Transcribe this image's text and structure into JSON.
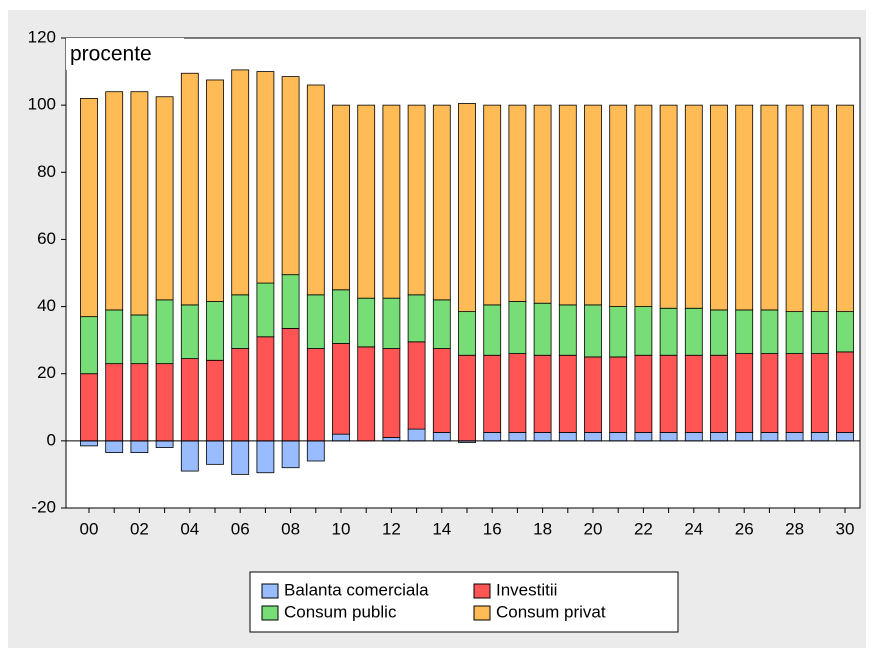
{
  "chart_data": {
    "type": "bar",
    "stacked": true,
    "annotation": "procente",
    "categories": [
      "00",
      null,
      "02",
      null,
      "04",
      null,
      "06",
      null,
      "08",
      null,
      "10",
      null,
      "12",
      null,
      "14",
      null,
      "16",
      null,
      "18",
      null,
      "20",
      null,
      "22",
      null,
      "24",
      null,
      "26",
      null,
      "28",
      null,
      "30"
    ],
    "ylim": [
      -20,
      120
    ],
    "yticks": [
      -20,
      0,
      20,
      40,
      60,
      80,
      100,
      120
    ],
    "series": [
      {
        "name": "Balanta comerciala",
        "color": "#99bbff",
        "values": [
          -1.5,
          -3.5,
          -3.5,
          -2,
          -9,
          -7,
          -10,
          -9.5,
          -8,
          -6,
          2,
          0,
          1,
          3.5,
          2.5,
          -0.5,
          2.5,
          2.5,
          2.5,
          2.5,
          2.5,
          2.5,
          2.5,
          2.5,
          2.5,
          2.5,
          2.5,
          2.5,
          2.5,
          2.5,
          2.5
        ]
      },
      {
        "name": "Investitii",
        "color": "#ff5555",
        "values": [
          20,
          23,
          23,
          23,
          24.5,
          24,
          27.5,
          31,
          33.5,
          27.5,
          27,
          28,
          26.5,
          26,
          25,
          25.5,
          23,
          23.5,
          23,
          23,
          22.5,
          22.5,
          23,
          23,
          23,
          23,
          23.5,
          23.5,
          23.5,
          23.5,
          24
        ]
      },
      {
        "name": "Consum public",
        "color": "#77dd77",
        "values": [
          17,
          16,
          14.5,
          19,
          16,
          17.5,
          16,
          16,
          16,
          16,
          16,
          14.5,
          15,
          14,
          14.5,
          13,
          15,
          15.5,
          15.5,
          15,
          15.5,
          15,
          14.5,
          14,
          14,
          13.5,
          13,
          13,
          12.5,
          12.5,
          12
        ]
      },
      {
        "name": "Consum privat",
        "color": "#ffbb55",
        "values": [
          65,
          65,
          66.5,
          60.5,
          69,
          66,
          67,
          63,
          59,
          62.5,
          55,
          57.5,
          57.5,
          56.5,
          58,
          62,
          59.5,
          58.5,
          59,
          59.5,
          59.5,
          60,
          60,
          60.5,
          60.5,
          61,
          61,
          61,
          61.5,
          61.5,
          61.5
        ]
      }
    ]
  }
}
